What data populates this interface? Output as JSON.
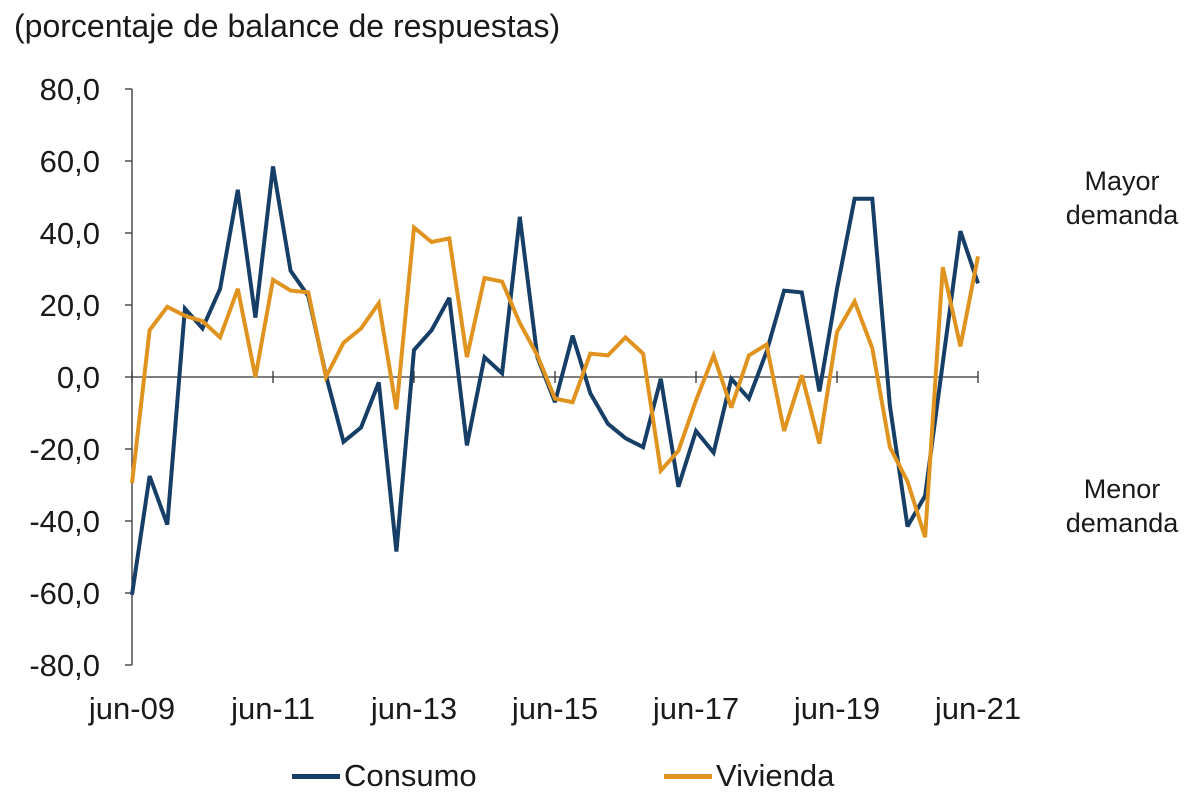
{
  "chart_data": {
    "type": "line",
    "subtitle": "(porcentaje de balance de respuestas)",
    "annotations": {
      "upper": [
        "Mayor",
        "demanda"
      ],
      "lower": [
        "Menor",
        "demanda"
      ]
    },
    "ylim": [
      -80,
      80
    ],
    "yticks": [
      80,
      60,
      40,
      20,
      0,
      -20,
      -40,
      -60,
      -80
    ],
    "ytick_labels": [
      "80,0",
      "60,0",
      "40,0",
      "20,0",
      "0,0",
      "-20,0",
      "-40,0",
      "-60,0",
      "-80,0"
    ],
    "xtick_labels": [
      "jun-09",
      "jun-11",
      "jun-13",
      "jun-15",
      "jun-17",
      "jun-19",
      "jun-21"
    ],
    "xlabel": "",
    "ylabel": "",
    "grid": false,
    "legend_position": "bottom",
    "series": [
      {
        "name": "Consumo",
        "color": "#163e66",
        "values": [
          -60.5,
          -27.5,
          -41.0,
          19.0,
          13.5,
          24.5,
          52.0,
          16.5,
          58.5,
          29.5,
          22.5,
          0.5,
          -18.0,
          -14.0,
          -1.5,
          -48.5,
          7.5,
          13.0,
          22.0,
          -19.0,
          5.5,
          1.0,
          44.5,
          5.5,
          -7.0,
          11.5,
          -4.5,
          -13.0,
          -17.0,
          -19.5,
          -0.5,
          -30.5,
          -15.0,
          -21.0,
          -0.5,
          -6.0,
          7.0,
          24.0,
          23.5,
          -4.0,
          24.5,
          49.5,
          49.5,
          -8.0,
          -41.5,
          -33.0,
          4.0,
          40.5,
          26.0
        ]
      },
      {
        "name": "Vivienda",
        "color": "#e0941f",
        "values": [
          -29.5,
          13.0,
          19.5,
          17.0,
          15.5,
          11.0,
          24.5,
          0.0,
          27.0,
          24.0,
          23.5,
          0.0,
          9.5,
          13.5,
          20.5,
          -9.0,
          41.5,
          37.5,
          38.5,
          5.5,
          27.5,
          26.5,
          15.0,
          6.0,
          -6.0,
          -7.0,
          6.5,
          6.0,
          11.0,
          6.5,
          -26.0,
          -20.5,
          -6.5,
          6.0,
          -8.5,
          6.0,
          9.0,
          -15.0,
          0.5,
          -18.5,
          12.5,
          21.0,
          8.0,
          -19.5,
          -29.0,
          -44.5,
          30.5,
          8.5,
          33.5
        ]
      }
    ]
  }
}
